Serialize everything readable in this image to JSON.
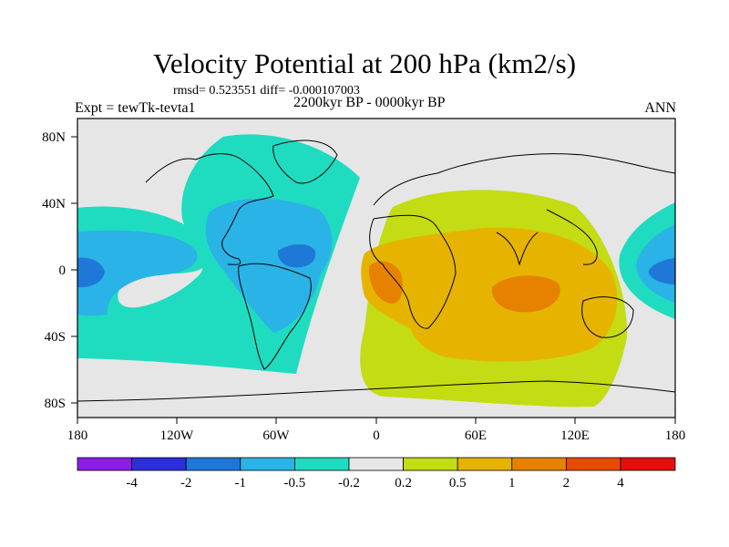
{
  "title": "Velocity Potential at 200 hPa (km2/s)",
  "stats_line": "rmsd= 0.523551 diff= -0.000107003",
  "left_label": "Expt = tewTk-tevta1",
  "center_label": "2200kyr BP - 0000kyr BP",
  "right_label": "ANN",
  "axes": {
    "lat_ticks": [
      "80N",
      "40N",
      "0",
      "40S",
      "80S"
    ],
    "lon_ticks": [
      "180",
      "120W",
      "60W",
      "0",
      "60E",
      "120E",
      "180"
    ]
  },
  "colorbar": {
    "labels": [
      "-4",
      "-2",
      "-1",
      "-0.5",
      "-0.2",
      "0.2",
      "0.5",
      "1",
      "2",
      "4"
    ],
    "colors": [
      "#8a1de6",
      "#2d2fdc",
      "#1f78d8",
      "#2ab3e6",
      "#1fdcc0",
      "#e6e6e6",
      "#c3dc14",
      "#e6b400",
      "#e68200",
      "#e64b00",
      "#e60f0f"
    ]
  },
  "field_colors": {
    "neutral": "#e6e6e6",
    "neg_05_02": "#1fdcc0",
    "neg_1_05": "#2ab3e6",
    "neg_2_1": "#1f78d8",
    "pos_02_05": "#c3dc14",
    "pos_05_1": "#e6b400",
    "pos_1_2": "#e68200"
  }
}
